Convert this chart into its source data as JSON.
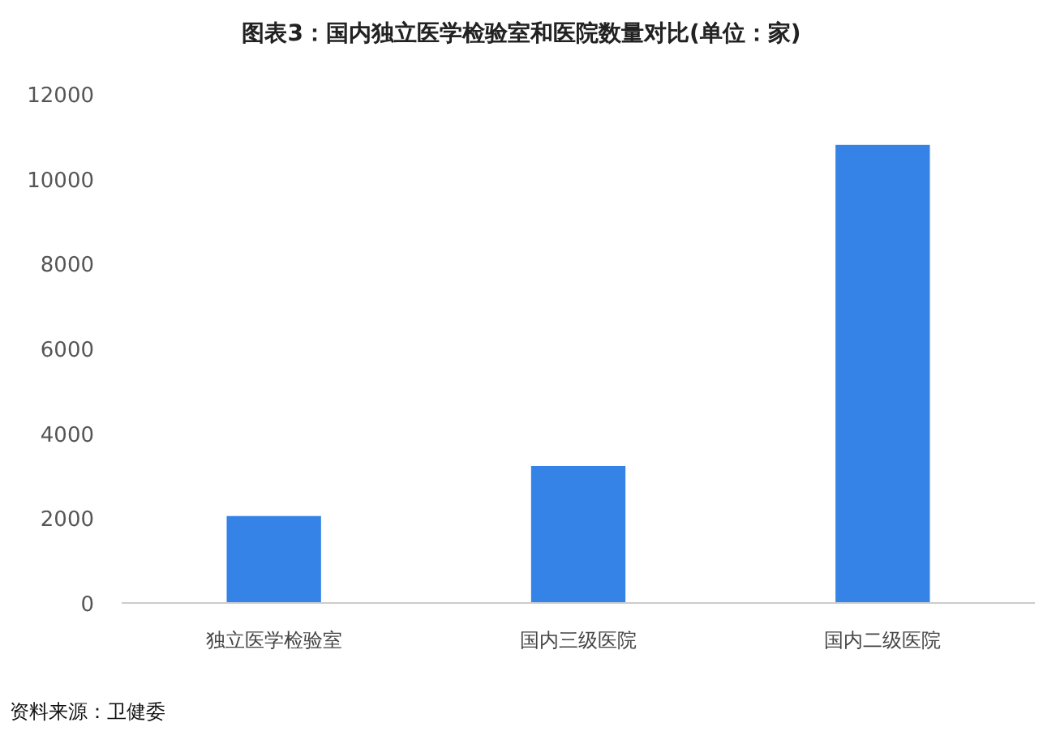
{
  "chart_data": {
    "type": "bar",
    "title": "图表3：国内独立医学检验室和医院数量对比(单位：家)",
    "categories": [
      "独立医学检验室",
      "国内三级医院",
      "国内二级医院"
    ],
    "values": [
      2050,
      3230,
      10800
    ],
    "color": "#3583e6",
    "ylim": [
      0,
      12000
    ],
    "yticks": [
      0,
      2000,
      4000,
      6000,
      8000,
      10000,
      12000
    ],
    "grid": false,
    "annotations": [
      "资料来源：卫健委"
    ]
  }
}
